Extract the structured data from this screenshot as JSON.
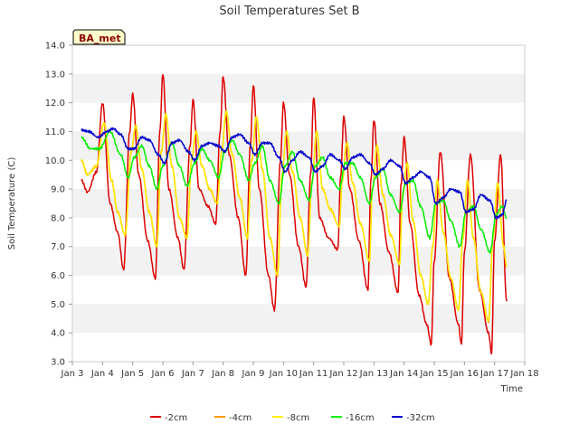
{
  "chart_data": {
    "type": "line",
    "title": "Soil Temperatures Set B",
    "xlabel": "Time",
    "ylabel": "Soil Temperature (C)",
    "xlim": [
      3,
      18
    ],
    "ylim": [
      3.0,
      14.0
    ],
    "grid": "horizontal bands",
    "legend_position": "bottom-center",
    "station_label": "BA_met",
    "x_ticks": [
      3,
      4,
      5,
      6,
      7,
      8,
      9,
      10,
      11,
      12,
      13,
      14,
      15,
      16,
      17,
      18
    ],
    "x_tick_labels": [
      "Jan 3",
      "Jan 4",
      "Jan 5",
      "Jan 6",
      "Jan 7",
      "Jan 8",
      "Jan 9",
      "Jan 10",
      "Jan 11",
      "Jan 12",
      "Jan 13",
      "Jan 14",
      "Jan 15",
      "Jan 16",
      "Jan 17",
      "Jan 18"
    ],
    "y_ticks": [
      3.0,
      4.0,
      5.0,
      6.0,
      7.0,
      8.0,
      9.0,
      10.0,
      11.0,
      12.0,
      13.0,
      14.0
    ],
    "y_tick_labels": [
      "3.0",
      "4.0",
      "5.0",
      "6.0",
      "7.0",
      "8.0",
      "9.0",
      "10.0",
      "11.0",
      "12.0",
      "13.0",
      "14.0"
    ],
    "series": [
      {
        "name": "-2cm",
        "color": "#dd0000",
        "x": [
          3.3,
          3.5,
          3.8,
          4.0,
          4.25,
          4.5,
          4.7,
          4.9,
          5.0,
          5.2,
          5.5,
          5.75,
          5.9,
          6.0,
          6.2,
          6.5,
          6.7,
          6.9,
          7.0,
          7.2,
          7.5,
          7.75,
          7.9,
          8.0,
          8.2,
          8.5,
          8.75,
          8.9,
          9.0,
          9.2,
          9.5,
          9.7,
          9.9,
          10.0,
          10.2,
          10.5,
          10.75,
          10.9,
          11.0,
          11.2,
          11.5,
          11.8,
          11.9,
          12.0,
          12.2,
          12.5,
          12.8,
          12.9,
          13.0,
          13.2,
          13.5,
          13.8,
          13.9,
          14.0,
          14.2,
          14.5,
          14.75,
          14.9,
          15.0,
          15.2,
          15.5,
          15.8,
          15.9,
          16.0,
          16.2,
          16.5,
          16.8,
          16.9,
          17.0,
          17.2,
          17.4
        ],
        "values": [
          9.3,
          8.9,
          9.6,
          12.0,
          8.5,
          7.5,
          6.2,
          11.0,
          12.3,
          9.5,
          7.2,
          5.9,
          11.0,
          13.0,
          9.0,
          7.3,
          6.2,
          10.5,
          12.1,
          9.0,
          8.4,
          7.8,
          11.0,
          12.9,
          10.2,
          8.0,
          6.0,
          10.5,
          12.6,
          9.0,
          6.0,
          4.8,
          10.0,
          12.0,
          9.5,
          7.0,
          5.6,
          9.5,
          12.2,
          8.0,
          7.3,
          6.9,
          9.5,
          11.5,
          9.0,
          7.2,
          5.5,
          9.3,
          11.4,
          8.5,
          6.8,
          5.4,
          9.2,
          10.8,
          7.8,
          5.3,
          4.3,
          3.6,
          6.5,
          10.3,
          5.9,
          4.3,
          3.6,
          6.8,
          10.2,
          5.5,
          4.0,
          3.3,
          7.2,
          10.2,
          5.1
        ]
      },
      {
        "name": "-4cm",
        "color": "#ff9900",
        "x": [
          3.3,
          3.5,
          3.8,
          4.05,
          4.3,
          4.5,
          4.75,
          4.95,
          5.1,
          5.3,
          5.55,
          5.8,
          5.95,
          6.1,
          6.3,
          6.55,
          6.8,
          6.95,
          7.1,
          7.3,
          7.55,
          7.8,
          7.95,
          8.1,
          8.3,
          8.55,
          8.8,
          8.95,
          9.1,
          9.3,
          9.55,
          9.8,
          9.95,
          10.1,
          10.3,
          10.55,
          10.8,
          10.95,
          11.1,
          11.3,
          11.55,
          11.85,
          11.95,
          12.1,
          12.3,
          12.55,
          12.85,
          12.95,
          13.1,
          13.3,
          13.55,
          13.85,
          13.95,
          14.1,
          14.3,
          14.55,
          14.8,
          14.95,
          15.1,
          15.3,
          15.55,
          15.8,
          15.95,
          16.1,
          16.3,
          16.55,
          16.8,
          16.95,
          17.1,
          17.3,
          17.4
        ],
        "values": [
          10.0,
          9.5,
          9.8,
          11.3,
          9.3,
          8.2,
          7.4,
          10.3,
          11.2,
          9.7,
          8.2,
          7.0,
          10.3,
          11.6,
          9.8,
          8.0,
          7.3,
          10.0,
          11.0,
          9.8,
          9.0,
          8.5,
          10.3,
          11.7,
          10.2,
          8.7,
          7.3,
          10.0,
          11.5,
          9.7,
          7.3,
          6.0,
          9.5,
          11.0,
          9.6,
          8.0,
          6.7,
          9.3,
          11.0,
          9.0,
          8.3,
          7.7,
          9.3,
          10.6,
          9.2,
          7.8,
          6.5,
          9.0,
          10.5,
          8.8,
          7.4,
          6.4,
          8.8,
          9.9,
          7.9,
          6.0,
          5.0,
          7.0,
          9.3,
          7.5,
          5.9,
          4.8,
          7.3,
          9.3,
          7.3,
          5.4,
          4.4,
          7.3,
          9.2,
          7.0,
          6.3
        ]
      },
      {
        "name": "-8cm",
        "color": "#ffee00",
        "x": [
          3.3,
          3.5,
          3.8,
          4.05,
          4.3,
          4.5,
          4.75,
          4.95,
          5.1,
          5.3,
          5.55,
          5.8,
          5.95,
          6.1,
          6.3,
          6.55,
          6.8,
          6.95,
          7.1,
          7.3,
          7.55,
          7.8,
          7.95,
          8.1,
          8.3,
          8.55,
          8.8,
          8.95,
          9.1,
          9.3,
          9.55,
          9.8,
          9.95,
          10.1,
          10.3,
          10.55,
          10.8,
          10.95,
          11.1,
          11.3,
          11.55,
          11.85,
          11.95,
          12.1,
          12.3,
          12.55,
          12.85,
          12.95,
          13.1,
          13.3,
          13.55,
          13.85,
          13.95,
          14.1,
          14.3,
          14.55,
          14.8,
          14.95,
          15.1,
          15.3,
          15.55,
          15.8,
          15.95,
          16.1,
          16.3,
          16.55,
          16.8,
          16.95,
          17.1,
          17.3,
          17.4
        ],
        "values": [
          10.0,
          9.5,
          9.8,
          11.3,
          9.3,
          8.2,
          7.4,
          10.3,
          11.2,
          9.7,
          8.2,
          7.0,
          10.3,
          11.6,
          9.8,
          8.0,
          7.3,
          10.0,
          11.0,
          9.8,
          9.0,
          8.5,
          10.3,
          11.7,
          10.2,
          8.7,
          7.3,
          10.0,
          11.5,
          9.7,
          7.3,
          6.0,
          9.5,
          11.0,
          9.6,
          8.0,
          6.7,
          9.3,
          11.0,
          9.0,
          8.3,
          7.7,
          9.3,
          10.6,
          9.2,
          7.8,
          6.5,
          9.0,
          10.5,
          8.8,
          7.4,
          6.4,
          8.8,
          9.9,
          7.9,
          6.0,
          5.0,
          7.0,
          9.3,
          7.5,
          5.9,
          4.8,
          7.3,
          9.3,
          7.3,
          5.4,
          4.4,
          7.3,
          9.2,
          7.0,
          6.3
        ]
      },
      {
        "name": "-16cm",
        "color": "#00ee00",
        "x": [
          3.3,
          3.6,
          3.9,
          4.25,
          4.6,
          4.85,
          5.05,
          5.3,
          5.55,
          5.8,
          6.0,
          6.3,
          6.55,
          6.8,
          7.05,
          7.3,
          7.55,
          7.85,
          8.05,
          8.3,
          8.55,
          8.85,
          9.05,
          9.3,
          9.55,
          9.85,
          10.05,
          10.3,
          10.55,
          10.85,
          11.05,
          11.3,
          11.55,
          11.85,
          12.05,
          12.3,
          12.55,
          12.85,
          13.05,
          13.3,
          13.55,
          13.85,
          14.05,
          14.3,
          14.55,
          14.85,
          15.05,
          15.3,
          15.55,
          15.85,
          16.05,
          16.3,
          16.55,
          16.85,
          17.05,
          17.25,
          17.4
        ],
        "values": [
          10.8,
          10.4,
          10.4,
          11.0,
          10.2,
          9.4,
          10.1,
          10.5,
          9.8,
          9.0,
          9.8,
          10.6,
          9.8,
          9.1,
          9.9,
          10.4,
          10.0,
          9.4,
          10.3,
          10.7,
          10.2,
          9.3,
          9.9,
          10.5,
          9.3,
          8.5,
          9.8,
          10.3,
          9.3,
          8.6,
          9.8,
          10.1,
          9.4,
          9.0,
          9.9,
          9.9,
          9.4,
          8.5,
          9.4,
          9.7,
          8.8,
          8.2,
          9.2,
          9.3,
          8.4,
          7.3,
          8.5,
          8.6,
          7.9,
          7.0,
          8.2,
          8.4,
          7.6,
          6.8,
          8.1,
          8.4,
          8.0
        ]
      },
      {
        "name": "-32cm",
        "color": "#0000cc",
        "x": [
          3.3,
          3.55,
          3.85,
          4.15,
          4.35,
          4.6,
          4.85,
          5.05,
          5.3,
          5.55,
          5.85,
          6.05,
          6.3,
          6.55,
          6.85,
          7.05,
          7.3,
          7.55,
          7.85,
          8.05,
          8.3,
          8.55,
          8.85,
          9.05,
          9.3,
          9.55,
          9.85,
          10.05,
          10.3,
          10.55,
          10.85,
          11.05,
          11.3,
          11.55,
          11.85,
          12.05,
          12.3,
          12.55,
          12.85,
          13.05,
          13.3,
          13.55,
          13.85,
          14.05,
          14.3,
          14.55,
          14.85,
          15.05,
          15.3,
          15.55,
          15.85,
          16.05,
          16.3,
          16.55,
          16.85,
          17.05,
          17.25,
          17.4
        ],
        "values": [
          11.05,
          11.0,
          10.8,
          11.0,
          11.1,
          10.9,
          10.4,
          10.4,
          10.8,
          10.7,
          10.2,
          9.9,
          10.6,
          10.7,
          10.3,
          10.0,
          10.5,
          10.6,
          10.5,
          10.3,
          10.8,
          10.9,
          10.6,
          10.2,
          10.6,
          10.6,
          10.1,
          9.6,
          10.0,
          10.3,
          10.1,
          9.6,
          9.8,
          10.2,
          10.0,
          9.7,
          10.1,
          10.2,
          9.9,
          9.5,
          9.7,
          10.0,
          9.8,
          9.2,
          9.4,
          9.6,
          9.4,
          8.5,
          8.7,
          9.0,
          8.9,
          8.2,
          8.3,
          8.8,
          8.6,
          8.0,
          8.1,
          8.6
        ]
      }
    ]
  }
}
